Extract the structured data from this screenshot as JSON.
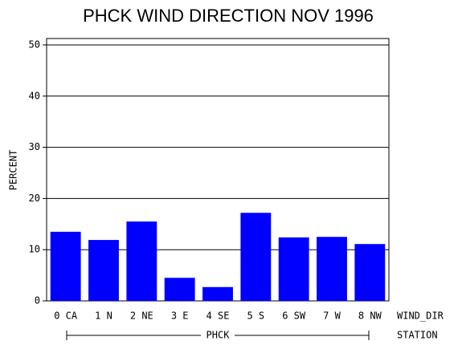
{
  "chart_data": {
    "type": "bar",
    "title": "PHCK WIND DIRECTION NOV 1996",
    "y_label": "PERCENT",
    "x_label": "WIND_DIR",
    "group_label": "PHCK",
    "group_axis_label": "STATION",
    "categories": [
      "0 CA",
      "1 N",
      "2 NE",
      "3 E",
      "4 SE",
      "5 S",
      "6 SW",
      "7 W",
      "8 NW"
    ],
    "values": [
      13.5,
      11.9,
      15.5,
      4.5,
      2.7,
      17.2,
      12.4,
      12.5,
      11.1
    ],
    "color": "#0000ff",
    "ylim": [
      0,
      51.25
    ],
    "yticks": [
      0,
      10,
      20,
      30,
      40,
      50
    ],
    "grid": true
  }
}
